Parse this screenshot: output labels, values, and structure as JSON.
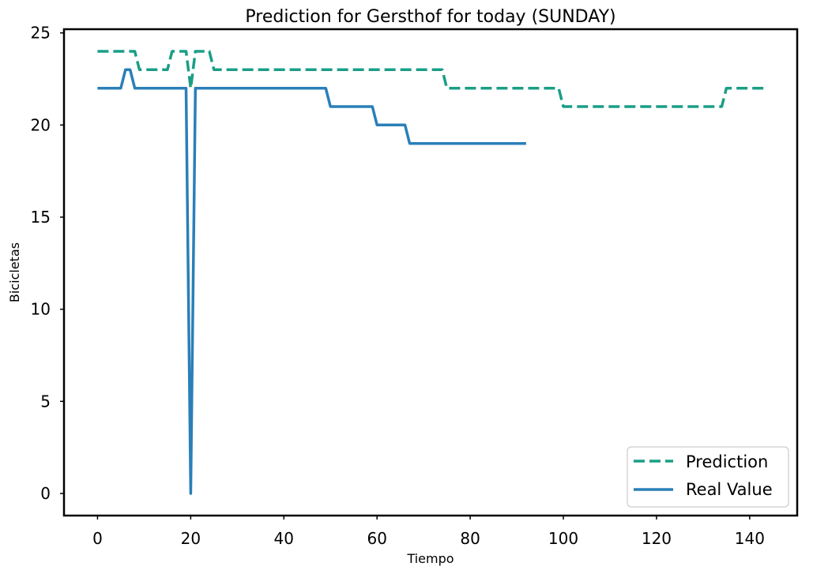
{
  "chart_data": {
    "type": "line",
    "title": "Prediction for Gersthof for today (SUNDAY)",
    "xlabel": "Tiempo",
    "ylabel": "Bicicletas",
    "xlim": [
      -7.2,
      150.2
    ],
    "ylim": [
      -1.2,
      25.2
    ],
    "xticks": [
      0,
      20,
      40,
      60,
      80,
      100,
      120,
      140
    ],
    "yticks": [
      0,
      5,
      10,
      15,
      20,
      25
    ],
    "grid": false,
    "legend_position": "bottom-right",
    "series": [
      {
        "name": "Prediction",
        "color": "#1a9e85",
        "style": "dashed",
        "points": [
          [
            0,
            24
          ],
          [
            8,
            24
          ],
          [
            9,
            23
          ],
          [
            15,
            23
          ],
          [
            16,
            24
          ],
          [
            19,
            24
          ],
          [
            20,
            22
          ],
          [
            21,
            24
          ],
          [
            24,
            24
          ],
          [
            25,
            23
          ],
          [
            74,
            23
          ],
          [
            75,
            22
          ],
          [
            99,
            22
          ],
          [
            100,
            21
          ],
          [
            134,
            21
          ],
          [
            135,
            22
          ],
          [
            143,
            22
          ]
        ]
      },
      {
        "name": "Real Value",
        "color": "#2a7fb8",
        "style": "solid",
        "points": [
          [
            0,
            22
          ],
          [
            5,
            22
          ],
          [
            6,
            23
          ],
          [
            7,
            23
          ],
          [
            8,
            22
          ],
          [
            19,
            22
          ],
          [
            20,
            0
          ],
          [
            21,
            22
          ],
          [
            49,
            22
          ],
          [
            50,
            21
          ],
          [
            59,
            21
          ],
          [
            60,
            20
          ],
          [
            66,
            20
          ],
          [
            67,
            19
          ],
          [
            92,
            19
          ]
        ]
      }
    ]
  }
}
